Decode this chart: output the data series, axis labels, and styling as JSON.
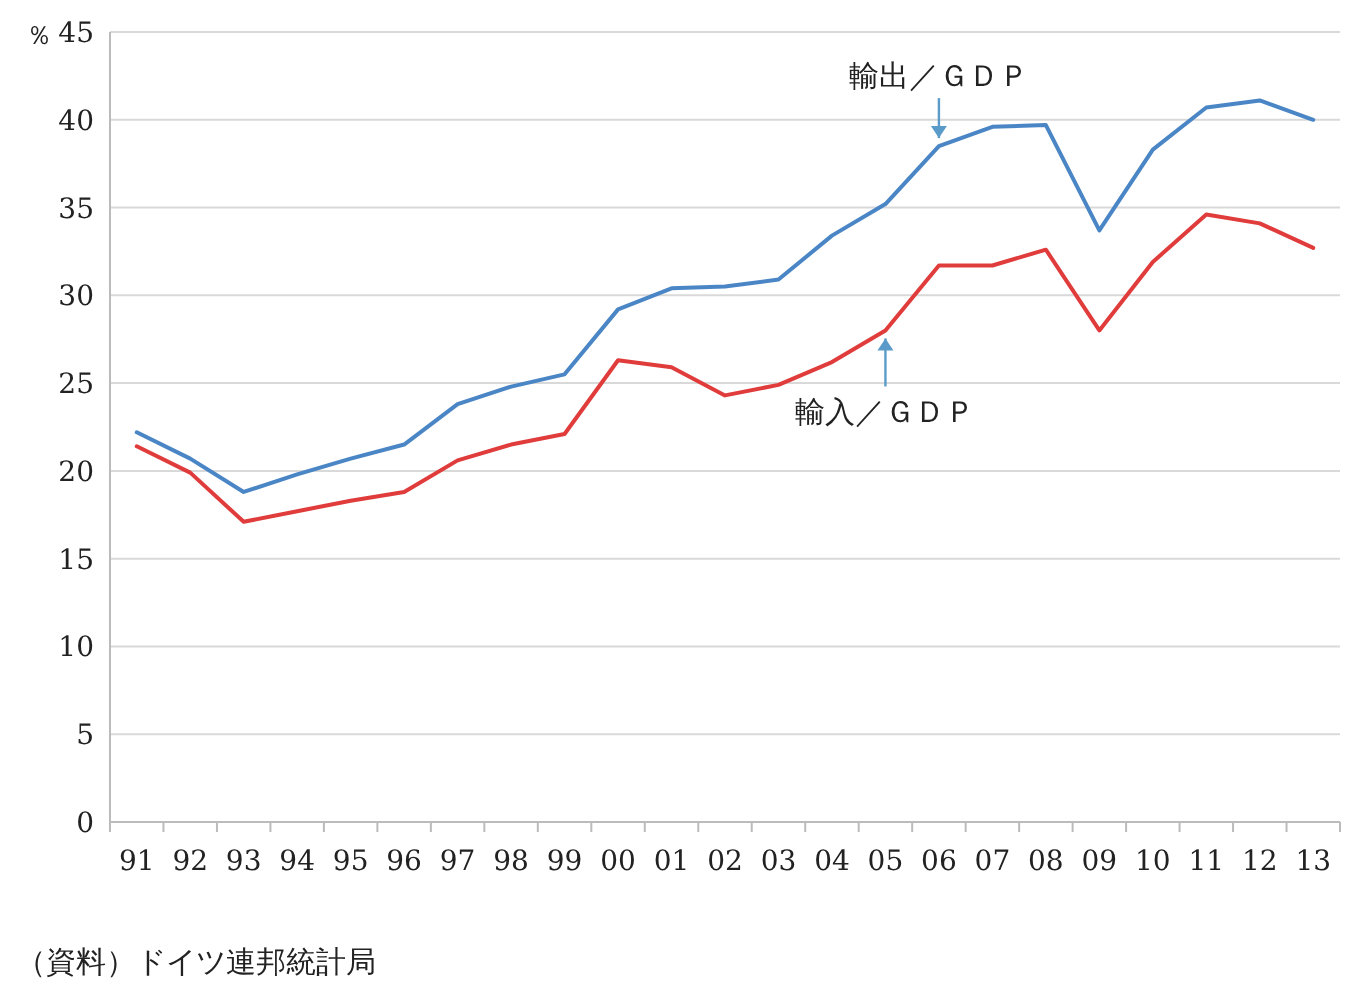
{
  "chart_data": {
    "type": "line",
    "ylabel": "％",
    "categories": [
      "91",
      "92",
      "93",
      "94",
      "95",
      "96",
      "97",
      "98",
      "99",
      "00",
      "01",
      "02",
      "03",
      "04",
      "05",
      "06",
      "07",
      "08",
      "09",
      "10",
      "11",
      "12",
      "13"
    ],
    "series": [
      {
        "color": "#4a86c5",
        "values": [
          22.2,
          20.7,
          18.8,
          19.8,
          20.7,
          21.5,
          23.8,
          24.8,
          25.5,
          29.2,
          30.4,
          30.5,
          30.9,
          33.4,
          35.2,
          38.5,
          39.6,
          39.7,
          33.7,
          38.3,
          40.7,
          41.1,
          40.0
        ]
      },
      {
        "color": "#e03c3c",
        "values": [
          21.4,
          19.9,
          17.1,
          17.7,
          18.3,
          18.8,
          20.6,
          21.5,
          22.1,
          26.3,
          25.9,
          24.3,
          24.9,
          26.2,
          28.0,
          31.7,
          31.7,
          32.6,
          28.0,
          31.9,
          34.6,
          34.1,
          32.7
        ]
      }
    ],
    "ylim": [
      0,
      45
    ],
    "yticks": [
      0,
      5,
      10,
      15,
      20,
      25,
      30,
      35,
      40,
      45
    ],
    "grid": "y",
    "marker": "none",
    "annotations": [
      {
        "text": "輸出／ＧＤＰ",
        "x": "06",
        "y": 38.5
      },
      {
        "text": "輸入／ＧＤＰ",
        "x": "05",
        "y": 28.0
      },
      "（資料）ドイツ連邦統計局"
    ]
  }
}
